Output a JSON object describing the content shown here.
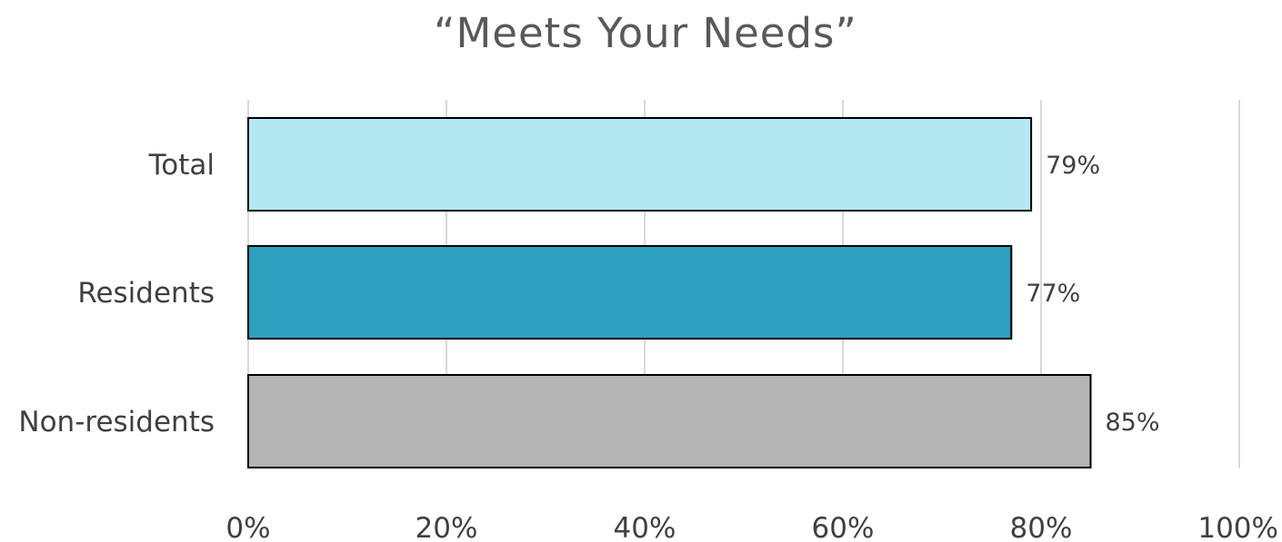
{
  "chart_data": {
    "type": "bar",
    "orientation": "horizontal",
    "title": "“Meets Your Needs”",
    "xlabel": "",
    "ylabel": "",
    "categories": [
      "Total",
      "Residents",
      "Non-residents"
    ],
    "values": [
      79,
      77,
      85
    ],
    "value_labels": [
      "79%",
      "77%",
      "85%"
    ],
    "bar_colors": [
      "#b4e9f3",
      "#2ca0be",
      "#b4b4b4"
    ],
    "xlim": [
      0,
      100
    ],
    "x_ticks": [
      0,
      20,
      40,
      60,
      80,
      100
    ],
    "x_tick_labels": [
      "0%",
      "20%",
      "40%",
      "60%",
      "80%",
      "100%"
    ],
    "grid": true,
    "legend": "none"
  }
}
